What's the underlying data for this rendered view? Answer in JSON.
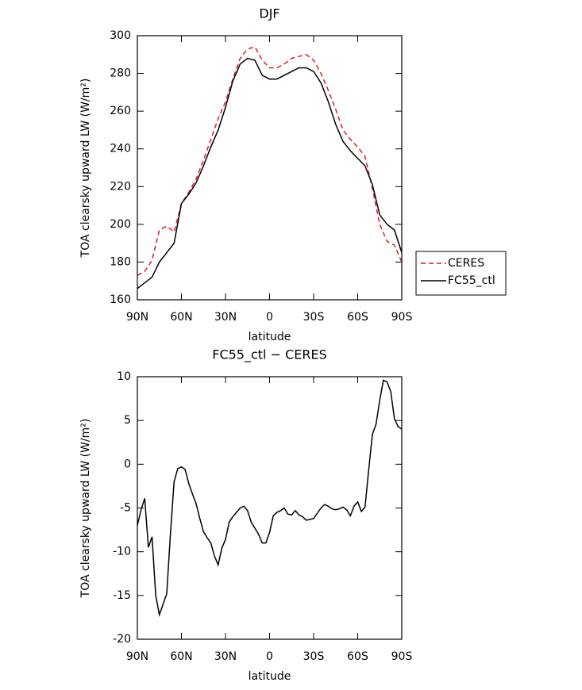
{
  "chart_data": [
    {
      "type": "line",
      "title": "DJF",
      "xlabel": "latitude",
      "ylabel": "TOA clearsky upward LW (W/m²)",
      "x": [
        90,
        85,
        80,
        75,
        70,
        65,
        60,
        55,
        50,
        45,
        40,
        35,
        30,
        25,
        20,
        15,
        10,
        5,
        0,
        -5,
        -10,
        -15,
        -20,
        -25,
        -30,
        -35,
        -40,
        -45,
        -50,
        -55,
        -60,
        -65,
        -70,
        -75,
        -80,
        -85,
        -90
      ],
      "series": [
        {
          "name": "CERES",
          "color": "#e8141c",
          "linestyle": "dashed",
          "values": [
            173,
            175,
            181,
            197,
            199,
            196,
            211,
            217,
            224,
            234,
            245,
            256,
            265,
            277,
            288,
            293,
            294,
            287,
            283,
            283,
            285,
            288,
            289,
            290,
            287,
            280,
            271,
            261,
            250,
            245,
            241,
            236,
            219,
            200,
            191,
            189,
            180
          ]
        },
        {
          "name": "FC55_ctl",
          "color": "#000000",
          "linestyle": "solid",
          "values": [
            166,
            169,
            172,
            180,
            185,
            190,
            211,
            216,
            222,
            231,
            241,
            250,
            262,
            276,
            285,
            288,
            287,
            279,
            277,
            277,
            279,
            281,
            283,
            283,
            281,
            275,
            265,
            253,
            244,
            239,
            235,
            231,
            221,
            205,
            200,
            197,
            185
          ]
        }
      ],
      "xlim": [
        90,
        -90
      ],
      "xticks": [
        {
          "value": 90,
          "label": "90N"
        },
        {
          "value": 60,
          "label": "60N"
        },
        {
          "value": 30,
          "label": "30N"
        },
        0,
        {
          "value": -30,
          "label": "30S"
        },
        {
          "value": -60,
          "label": "60S"
        },
        {
          "value": -90,
          "label": "90S"
        }
      ],
      "ylim": [
        160,
        300
      ],
      "yticks": [
        160,
        180,
        200,
        220,
        240,
        260,
        280,
        300
      ],
      "legend": "right"
    },
    {
      "type": "line",
      "title": "FC55_ctl − CERES",
      "xlabel": "latitude",
      "ylabel": "TOA clearsky upward LW (W/m²)",
      "x": [
        90,
        87.5,
        85,
        82.5,
        80,
        77.5,
        75,
        72.5,
        70,
        67.5,
        65,
        62.5,
        60,
        57.5,
        55,
        52.5,
        50,
        47.5,
        45,
        42.5,
        40,
        37.5,
        35,
        32.5,
        30,
        27.5,
        25,
        22.5,
        20,
        17.5,
        15,
        12.5,
        10,
        7.5,
        5,
        2.5,
        0,
        -2.5,
        -5,
        -7.5,
        -10,
        -12.5,
        -15,
        -17.5,
        -20,
        -22.5,
        -25,
        -27.5,
        -30,
        -32.5,
        -35,
        -37.5,
        -40,
        -42.5,
        -45,
        -47.5,
        -50,
        -52.5,
        -55,
        -57.5,
        -60,
        -62.5,
        -65,
        -67.5,
        -70,
        -72.5,
        -75,
        -77.5,
        -80,
        -82.5,
        -85,
        -87.5,
        -90
      ],
      "series": [
        {
          "color": "#000000",
          "linestyle": "solid",
          "values": [
            -7,
            -5.2,
            -3.9,
            -9.5,
            -8.3,
            -15,
            -17.2,
            -16,
            -14.8,
            -8,
            -2,
            -0.5,
            -0.3,
            -0.6,
            -2.2,
            -3.4,
            -4.5,
            -6.2,
            -7.7,
            -8.4,
            -9,
            -10.5,
            -11.5,
            -9.6,
            -8.6,
            -6.6,
            -6,
            -5.5,
            -5,
            -4.8,
            -5.3,
            -6.6,
            -7.3,
            -8,
            -9,
            -9,
            -7.8,
            -5.9,
            -5.5,
            -5.3,
            -5,
            -5.7,
            -5.8,
            -5.3,
            -5.8,
            -6,
            -6.4,
            -6.3,
            -6.2,
            -5.6,
            -5,
            -4.6,
            -4.8,
            -5.1,
            -5.2,
            -5.1,
            -4.9,
            -5.2,
            -5.9,
            -4.8,
            -4.3,
            -5.4,
            -4.9,
            -0.6,
            3.4,
            4.6,
            7.3,
            9.6,
            9.4,
            8.3,
            5.2,
            4.3,
            4
          ]
        }
      ],
      "xlim": [
        90,
        -90
      ],
      "xticks": [
        {
          "value": 90,
          "label": "90N"
        },
        {
          "value": 60,
          "label": "60N"
        },
        {
          "value": 30,
          "label": "30N"
        },
        0,
        {
          "value": -30,
          "label": "30S"
        },
        {
          "value": -60,
          "label": "60S"
        },
        {
          "value": -90,
          "label": "90S"
        }
      ],
      "ylim": [
        -20,
        10
      ],
      "yticks": [
        -20,
        -15,
        -10,
        -5,
        0,
        5,
        10
      ]
    }
  ]
}
